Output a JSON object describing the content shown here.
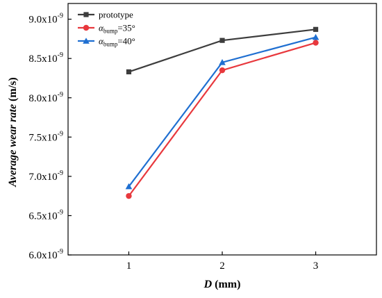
{
  "chart_data": {
    "type": "line",
    "xlabel_var": "D",
    "xlabel_unit": " (mm)",
    "ylabel": "Average wear rate",
    "ylabel_unit": " (m/s)",
    "x": [
      1,
      2,
      3
    ],
    "xlim": [
      0.35,
      3.65
    ],
    "ylim": [
      6.0,
      9.2
    ],
    "x_ticks": [
      1,
      2,
      3
    ],
    "y_ticks": [
      {
        "value": 6.0,
        "mantissa": "6.0x10",
        "exp": "-9"
      },
      {
        "value": 6.5,
        "mantissa": "6.5x10",
        "exp": "-9"
      },
      {
        "value": 7.0,
        "mantissa": "7.0x10",
        "exp": "-9"
      },
      {
        "value": 7.5,
        "mantissa": "7.5x10",
        "exp": "-9"
      },
      {
        "value": 8.0,
        "mantissa": "8.0x10",
        "exp": "-9"
      },
      {
        "value": 8.5,
        "mantissa": "8.5x10",
        "exp": "-9"
      },
      {
        "value": 9.0,
        "mantissa": "9.0x10",
        "exp": "-9"
      }
    ],
    "series": [
      {
        "name": "prototype",
        "symbol": "square",
        "color": "#3d3d3d",
        "values": [
          8.33,
          8.73,
          8.87
        ]
      },
      {
        "name_main": "α",
        "name_sub": "bump",
        "name_rest": "=35°",
        "symbol": "circle",
        "color": "#e8383d",
        "values": [
          6.75,
          8.35,
          8.7
        ]
      },
      {
        "name_main": "α",
        "name_sub": "bump",
        "name_rest": "=40°",
        "symbol": "triangle",
        "color": "#1f6fd1",
        "values": [
          6.87,
          8.45,
          8.77
        ]
      }
    ],
    "legend_position": "top-left",
    "grid": false
  }
}
